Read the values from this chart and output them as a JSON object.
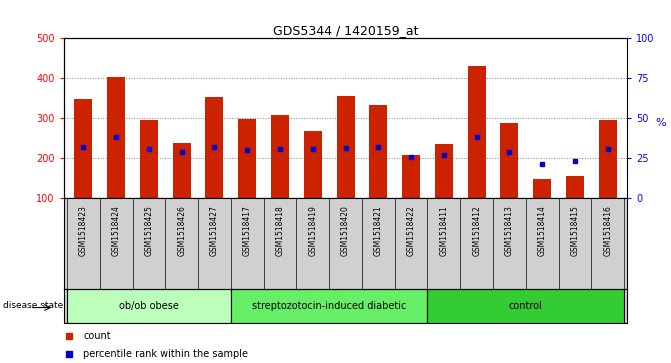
{
  "title": "GDS5344 / 1420159_at",
  "samples": [
    "GSM1518423",
    "GSM1518424",
    "GSM1518425",
    "GSM1518426",
    "GSM1518427",
    "GSM1518417",
    "GSM1518418",
    "GSM1518419",
    "GSM1518420",
    "GSM1518421",
    "GSM1518422",
    "GSM1518411",
    "GSM1518412",
    "GSM1518413",
    "GSM1518414",
    "GSM1518415",
    "GSM1518416"
  ],
  "counts": [
    348,
    402,
    295,
    237,
    353,
    297,
    307,
    268,
    354,
    332,
    207,
    235,
    430,
    287,
    147,
    155,
    296
  ],
  "percentile_ranks": [
    228,
    252,
    222,
    215,
    228,
    220,
    222,
    222,
    225,
    227,
    202,
    207,
    252,
    215,
    185,
    192,
    222
  ],
  "groups": [
    {
      "label": "ob/ob obese",
      "start": 0,
      "end": 5,
      "color": "#bbffbb"
    },
    {
      "label": "streptozotocin-induced diabetic",
      "start": 5,
      "end": 11,
      "color": "#66ee66"
    },
    {
      "label": "control",
      "start": 11,
      "end": 17,
      "color": "#33cc33"
    }
  ],
  "ylim_left": [
    100,
    500
  ],
  "ylim_right": [
    0,
    100
  ],
  "y_ticks_left": [
    100,
    200,
    300,
    400,
    500
  ],
  "y_ticks_right": [
    0,
    25,
    50,
    75,
    100
  ],
  "bar_color": "#cc2200",
  "percentile_color": "#0000cc",
  "plot_bg": "#ffffff",
  "label_bg": "#d0d0d0",
  "bar_width": 0.55,
  "disease_state_label": "disease state",
  "legend_count": "count",
  "legend_percentile": "percentile rank within the sample",
  "right_axis_label": "%"
}
